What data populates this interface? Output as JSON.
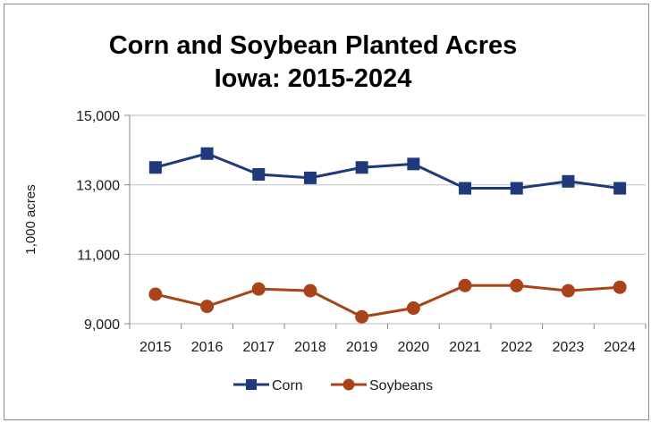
{
  "chart_data": {
    "type": "line",
    "title": "Corn and Soybean Planted Acres",
    "subtitle": "Iowa:  2015-2024",
    "xlabel": "",
    "ylabel": "1,000 acres",
    "ylim": [
      9000,
      15000
    ],
    "yticks": [
      "9,000",
      "11,000",
      "13,000",
      "15,000"
    ],
    "categories": [
      "2015",
      "2016",
      "2017",
      "2018",
      "2019",
      "2020",
      "2021",
      "2022",
      "2023",
      "2024"
    ],
    "grid": "horizontal",
    "legend": "bottom",
    "series": [
      {
        "name": "Corn",
        "color": "#1f3a7a",
        "marker": "square",
        "values": [
          13500,
          13900,
          13300,
          13200,
          13500,
          13600,
          12900,
          12900,
          13100,
          12900
        ]
      },
      {
        "name": "Soybeans",
        "color": "#a8431a",
        "marker": "circle",
        "values": [
          9850,
          9500,
          10000,
          9950,
          9200,
          9450,
          10100,
          10100,
          9950,
          10050
        ]
      }
    ]
  }
}
